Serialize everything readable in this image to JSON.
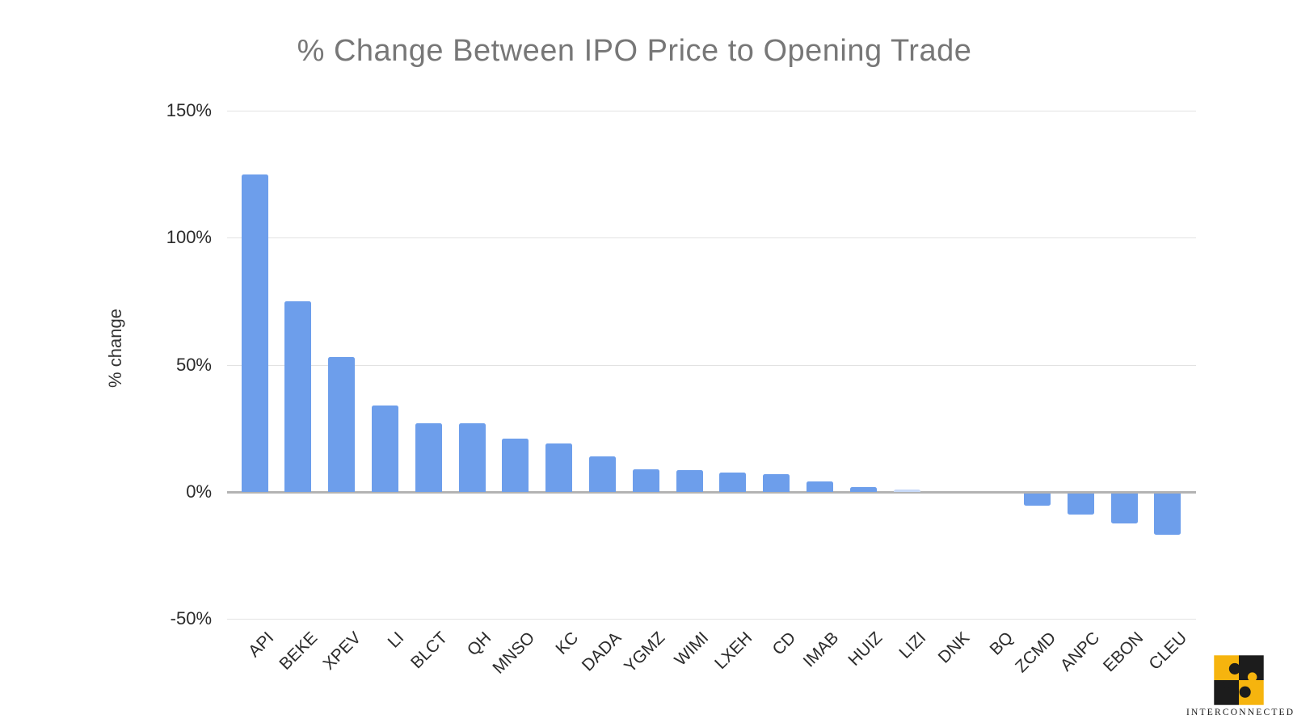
{
  "chart_data": {
    "type": "bar",
    "title": "% Change Between IPO Price to Opening Trade",
    "xlabel": "",
    "ylabel": "% change",
    "categories": [
      "API",
      "BEKE",
      "XPEV",
      "LI",
      "BLCT",
      "QH",
      "MNSO",
      "KC",
      "DADA",
      "YGMZ",
      "WIMI",
      "LXEH",
      "CD",
      "IMAB",
      "HUIZ",
      "LIZI",
      "DNK",
      "BQ",
      "ZCMD",
      "ANPC",
      "EBON",
      "CLEU"
    ],
    "values": [
      125,
      75,
      53,
      34,
      27,
      27,
      21,
      19,
      14,
      9,
      8.5,
      7.5,
      7,
      4,
      2,
      1,
      0,
      0,
      -5,
      -8.5,
      -12,
      -16.5
    ],
    "ylim": [
      -50,
      150
    ],
    "ytick_values": [
      150,
      100,
      50,
      0,
      -50
    ],
    "ytick_labels": [
      "150%",
      "100%",
      "50%",
      "0%",
      "-50%"
    ],
    "grid": true,
    "legend": false,
    "bar_color": "#6d9eeb",
    "light_bar_category": "LIZI",
    "light_bar_color": "#c9daf8",
    "gridline_color": "#e2e2e2",
    "zero_line_color": "#b3b3b3",
    "title_color": "#777777",
    "axis_text_color": "#2b2b2b"
  },
  "branding": {
    "logo_text": "INTERCONNECTED",
    "logo_yellow": "#F6B40E",
    "logo_black": "#1c1c1c",
    "logo_icon": "puzzle-icon"
  }
}
